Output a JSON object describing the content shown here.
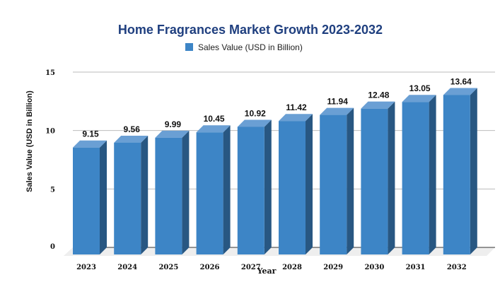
{
  "chart_data": {
    "type": "bar",
    "title": "Home Fragrances Market Growth 2023-2032",
    "xlabel": "Year",
    "ylabel": "Sales Value (USD in Billion)",
    "categories": [
      "2023",
      "2024",
      "2025",
      "2026",
      "2027",
      "2028",
      "2029",
      "2030",
      "2031",
      "2032"
    ],
    "series": [
      {
        "name": "Sales Value (USD in Billion)",
        "values": [
          9.15,
          9.56,
          9.99,
          10.45,
          10.92,
          11.42,
          11.94,
          12.48,
          13.05,
          13.64
        ]
      }
    ],
    "ylim": [
      0,
      15
    ],
    "yticks": [
      0,
      5,
      10,
      15
    ],
    "grid": true,
    "legend": "top",
    "style": "3d",
    "colors": {
      "front": "#3d85c6",
      "side": "#285782",
      "top": "#6a9fd4",
      "title": "#1f3f7f",
      "floor": "#eeeeee"
    }
  }
}
